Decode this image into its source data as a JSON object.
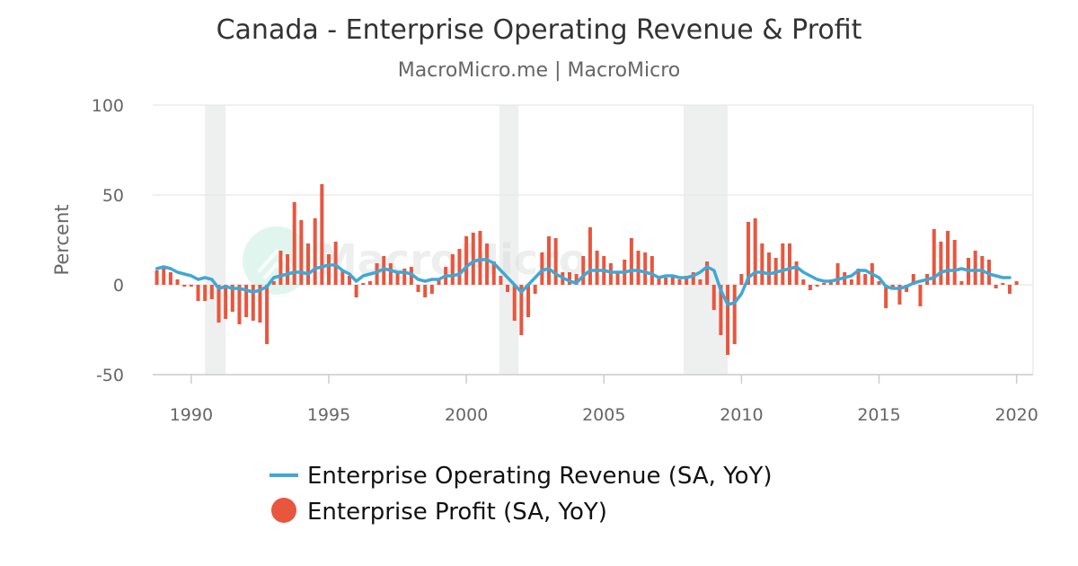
{
  "colors": {
    "revenue": "#3fa8d6",
    "profit": "#e8563e",
    "grid": "#e6e6e6",
    "recession": "#eef0ef",
    "axis": "#cccccc"
  },
  "watermark": {
    "text": "MacroMicro"
  },
  "chart_data": {
    "type": "bar",
    "title": "Canada - Enterprise Operating Revenue & Profit",
    "subtitle": "MacroMicro.me | MacroMicro",
    "ylabel": "Percent",
    "ylim": [
      -50,
      100
    ],
    "yticks": [
      -50,
      0,
      50,
      100
    ],
    "xlim": [
      1988.6,
      2020.6
    ],
    "xticks": [
      {
        "value": 1990,
        "label": "1990"
      },
      {
        "value": 1995,
        "label": "1995"
      },
      {
        "value": 2000,
        "label": "2000"
      },
      {
        "value": 2005,
        "label": "2005"
      },
      {
        "value": 2010,
        "label": "2010"
      },
      {
        "value": 2015,
        "label": "2015"
      },
      {
        "value": 2020,
        "label": "2020"
      }
    ],
    "recessions": [
      {
        "start": 1990.5,
        "end": 1991.25
      },
      {
        "start": 2001.2,
        "end": 2001.9
      },
      {
        "start": 2007.9,
        "end": 2009.5
      }
    ],
    "legend": {
      "revenue_label": "Enterprise Operating Revenue (SA, YoY)",
      "profit_label": "Enterprise Profit (SA, YoY)"
    },
    "series": [
      {
        "name": "Enterprise Operating Revenue (SA, YoY)",
        "kind": "line",
        "points": [
          [
            1988.75,
            9
          ],
          [
            1989.0,
            10
          ],
          [
            1989.25,
            9
          ],
          [
            1989.5,
            7
          ],
          [
            1989.75,
            6
          ],
          [
            1990.0,
            5
          ],
          [
            1990.25,
            3
          ],
          [
            1990.5,
            4
          ],
          [
            1990.75,
            3
          ],
          [
            1991.0,
            -2
          ],
          [
            1991.25,
            -1
          ],
          [
            1991.5,
            -2
          ],
          [
            1991.75,
            -2
          ],
          [
            1992.0,
            -3
          ],
          [
            1992.25,
            -4
          ],
          [
            1992.5,
            -3
          ],
          [
            1992.75,
            -1
          ],
          [
            1993.0,
            4
          ],
          [
            1993.25,
            5
          ],
          [
            1993.5,
            6
          ],
          [
            1993.75,
            7
          ],
          [
            1994.0,
            7
          ],
          [
            1994.25,
            6
          ],
          [
            1994.5,
            9
          ],
          [
            1994.75,
            10
          ],
          [
            1995.0,
            11
          ],
          [
            1995.25,
            11
          ],
          [
            1995.5,
            8
          ],
          [
            1995.75,
            6
          ],
          [
            1996.0,
            2
          ],
          [
            1996.25,
            5
          ],
          [
            1996.5,
            6
          ],
          [
            1996.75,
            7
          ],
          [
            1997.0,
            9
          ],
          [
            1997.25,
            8
          ],
          [
            1997.5,
            7
          ],
          [
            1997.75,
            7
          ],
          [
            1998.0,
            6
          ],
          [
            1998.25,
            3
          ],
          [
            1998.5,
            2
          ],
          [
            1998.75,
            3
          ],
          [
            1999.0,
            3
          ],
          [
            1999.25,
            5
          ],
          [
            1999.5,
            5
          ],
          [
            1999.75,
            6
          ],
          [
            2000.0,
            10
          ],
          [
            2000.25,
            13
          ],
          [
            2000.5,
            14
          ],
          [
            2000.75,
            14
          ],
          [
            2001.0,
            12
          ],
          [
            2001.25,
            8
          ],
          [
            2001.5,
            4
          ],
          [
            2001.75,
            0
          ],
          [
            2002.0,
            -4
          ],
          [
            2002.25,
            0
          ],
          [
            2002.5,
            4
          ],
          [
            2002.75,
            8
          ],
          [
            2003.0,
            9
          ],
          [
            2003.25,
            6
          ],
          [
            2003.5,
            4
          ],
          [
            2003.75,
            2
          ],
          [
            2004.0,
            1
          ],
          [
            2004.25,
            5
          ],
          [
            2004.5,
            8
          ],
          [
            2004.75,
            8
          ],
          [
            2005.0,
            8
          ],
          [
            2005.25,
            7
          ],
          [
            2005.5,
            7
          ],
          [
            2005.75,
            7
          ],
          [
            2006.0,
            8
          ],
          [
            2006.25,
            8
          ],
          [
            2006.5,
            7
          ],
          [
            2006.75,
            6
          ],
          [
            2007.0,
            4
          ],
          [
            2007.25,
            5
          ],
          [
            2007.5,
            5
          ],
          [
            2007.75,
            4
          ],
          [
            2008.0,
            4
          ],
          [
            2008.25,
            5
          ],
          [
            2008.5,
            7
          ],
          [
            2008.75,
            10
          ],
          [
            2009.0,
            8
          ],
          [
            2009.25,
            -3
          ],
          [
            2009.5,
            -11
          ],
          [
            2009.75,
            -10
          ],
          [
            2010.0,
            -5
          ],
          [
            2010.25,
            4
          ],
          [
            2010.5,
            7
          ],
          [
            2010.75,
            7
          ],
          [
            2011.0,
            6
          ],
          [
            2011.25,
            7
          ],
          [
            2011.5,
            8
          ],
          [
            2011.75,
            9
          ],
          [
            2012.0,
            10
          ],
          [
            2012.25,
            7
          ],
          [
            2012.5,
            5
          ],
          [
            2012.75,
            3
          ],
          [
            2013.0,
            2
          ],
          [
            2013.25,
            2
          ],
          [
            2013.5,
            3
          ],
          [
            2013.75,
            4
          ],
          [
            2014.0,
            5
          ],
          [
            2014.25,
            8
          ],
          [
            2014.5,
            8
          ],
          [
            2014.75,
            6
          ],
          [
            2015.0,
            4
          ],
          [
            2015.25,
            -1
          ],
          [
            2015.5,
            -2
          ],
          [
            2015.75,
            -2
          ],
          [
            2016.0,
            -1
          ],
          [
            2016.25,
            1
          ],
          [
            2016.5,
            2
          ],
          [
            2016.75,
            3
          ],
          [
            2017.0,
            4
          ],
          [
            2017.25,
            7
          ],
          [
            2017.5,
            8
          ],
          [
            2017.75,
            8
          ],
          [
            2018.0,
            9
          ],
          [
            2018.25,
            8
          ],
          [
            2018.5,
            8
          ],
          [
            2018.75,
            8
          ],
          [
            2019.0,
            6
          ],
          [
            2019.25,
            5
          ],
          [
            2019.5,
            4
          ],
          [
            2019.75,
            4
          ]
        ]
      },
      {
        "name": "Enterprise Profit (SA, YoY)",
        "kind": "bar",
        "points": [
          [
            1988.75,
            8
          ],
          [
            1989.0,
            10
          ],
          [
            1989.25,
            7
          ],
          [
            1989.5,
            3
          ],
          [
            1989.75,
            -1
          ],
          [
            1990.0,
            -1
          ],
          [
            1990.25,
            -9
          ],
          [
            1990.5,
            -9
          ],
          [
            1990.75,
            -8
          ],
          [
            1991.0,
            -21
          ],
          [
            1991.25,
            -19
          ],
          [
            1991.5,
            -15
          ],
          [
            1991.75,
            -22
          ],
          [
            1992.0,
            -18
          ],
          [
            1992.25,
            -20
          ],
          [
            1992.5,
            -21
          ],
          [
            1992.75,
            -33
          ],
          [
            1993.0,
            2
          ],
          [
            1993.25,
            19
          ],
          [
            1993.5,
            17
          ],
          [
            1993.75,
            46
          ],
          [
            1994.0,
            36
          ],
          [
            1994.25,
            23
          ],
          [
            1994.5,
            37
          ],
          [
            1994.75,
            56
          ],
          [
            1995.0,
            17
          ],
          [
            1995.25,
            24
          ],
          [
            1995.5,
            8
          ],
          [
            1995.75,
            5
          ],
          [
            1996.0,
            -7
          ],
          [
            1996.25,
            1
          ],
          [
            1996.5,
            2
          ],
          [
            1996.75,
            12
          ],
          [
            1997.0,
            16
          ],
          [
            1997.25,
            12
          ],
          [
            1997.5,
            7
          ],
          [
            1997.75,
            9
          ],
          [
            1998.0,
            10
          ],
          [
            1998.25,
            -4
          ],
          [
            1998.5,
            -7
          ],
          [
            1998.75,
            -5
          ],
          [
            1999.0,
            3
          ],
          [
            1999.25,
            10
          ],
          [
            1999.5,
            17
          ],
          [
            1999.75,
            20
          ],
          [
            2000.0,
            27
          ],
          [
            2000.25,
            29
          ],
          [
            2000.5,
            30
          ],
          [
            2000.75,
            23
          ],
          [
            2001.0,
            13
          ],
          [
            2001.25,
            5
          ],
          [
            2001.5,
            -4
          ],
          [
            2001.75,
            -20
          ],
          [
            2002.0,
            -28
          ],
          [
            2002.25,
            -18
          ],
          [
            2002.5,
            -5
          ],
          [
            2002.75,
            18
          ],
          [
            2003.0,
            27
          ],
          [
            2003.25,
            26
          ],
          [
            2003.5,
            7
          ],
          [
            2003.75,
            7
          ],
          [
            2004.0,
            6
          ],
          [
            2004.25,
            16
          ],
          [
            2004.5,
            32
          ],
          [
            2004.75,
            19
          ],
          [
            2005.0,
            16
          ],
          [
            2005.25,
            12
          ],
          [
            2005.5,
            7
          ],
          [
            2005.75,
            14
          ],
          [
            2006.0,
            26
          ],
          [
            2006.25,
            19
          ],
          [
            2006.5,
            18
          ],
          [
            2006.75,
            16
          ],
          [
            2007.0,
            5
          ],
          [
            2007.25,
            4
          ],
          [
            2007.5,
            5
          ],
          [
            2007.75,
            3
          ],
          [
            2008.0,
            5
          ],
          [
            2008.25,
            7
          ],
          [
            2008.5,
            3
          ],
          [
            2008.75,
            13
          ],
          [
            2009.0,
            -14
          ],
          [
            2009.25,
            -28
          ],
          [
            2009.5,
            -39
          ],
          [
            2009.75,
            -33
          ],
          [
            2010.0,
            6
          ],
          [
            2010.25,
            35
          ],
          [
            2010.5,
            37
          ],
          [
            2010.75,
            23
          ],
          [
            2011.0,
            18
          ],
          [
            2011.25,
            15
          ],
          [
            2011.5,
            23
          ],
          [
            2011.75,
            23
          ],
          [
            2012.0,
            13
          ],
          [
            2012.25,
            3
          ],
          [
            2012.5,
            -3
          ],
          [
            2012.75,
            -1
          ],
          [
            2013.0,
            1
          ],
          [
            2013.25,
            3
          ],
          [
            2013.5,
            12
          ],
          [
            2013.75,
            7
          ],
          [
            2014.0,
            3
          ],
          [
            2014.25,
            9
          ],
          [
            2014.5,
            6
          ],
          [
            2014.75,
            12
          ],
          [
            2015.0,
            2
          ],
          [
            2015.25,
            -13
          ],
          [
            2015.5,
            -2
          ],
          [
            2015.75,
            -11
          ],
          [
            2016.0,
            -4
          ],
          [
            2016.25,
            6
          ],
          [
            2016.5,
            -12
          ],
          [
            2016.75,
            6
          ],
          [
            2017.0,
            31
          ],
          [
            2017.25,
            24
          ],
          [
            2017.5,
            30
          ],
          [
            2017.75,
            25
          ],
          [
            2018.0,
            2
          ],
          [
            2018.25,
            15
          ],
          [
            2018.5,
            19
          ],
          [
            2018.75,
            16
          ],
          [
            2019.0,
            14
          ],
          [
            2019.25,
            -2
          ],
          [
            2019.5,
            1
          ],
          [
            2019.75,
            -5
          ],
          [
            2020.0,
            2
          ]
        ]
      }
    ]
  }
}
